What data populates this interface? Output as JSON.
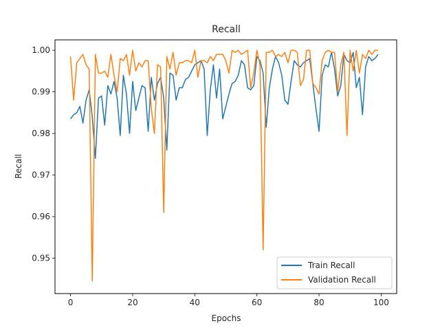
{
  "chart_data": {
    "type": "line",
    "title": "Recall",
    "xlabel": "Epochs",
    "ylabel": "Recall",
    "xlim": [
      -5,
      105
    ],
    "ylim": [
      0.9415,
      1.0025
    ],
    "xticks": [
      0,
      20,
      40,
      60,
      80,
      100
    ],
    "yticks": [
      0.95,
      0.96,
      0.97,
      0.98,
      0.99,
      1.0
    ],
    "ytick_labels": [
      "0.95",
      "0.96",
      "0.97",
      "0.98",
      "0.99",
      "1.00"
    ],
    "grid": false,
    "legend_position": "lower-right",
    "x": [
      0,
      1,
      2,
      3,
      4,
      5,
      6,
      7,
      8,
      9,
      10,
      11,
      12,
      13,
      14,
      15,
      16,
      17,
      18,
      19,
      20,
      21,
      22,
      23,
      24,
      25,
      26,
      27,
      28,
      29,
      30,
      31,
      32,
      33,
      34,
      35,
      36,
      37,
      38,
      39,
      40,
      41,
      42,
      43,
      44,
      45,
      46,
      47,
      48,
      49,
      50,
      51,
      52,
      53,
      54,
      55,
      56,
      57,
      58,
      59,
      60,
      61,
      62,
      63,
      64,
      65,
      66,
      67,
      68,
      69,
      70,
      71,
      72,
      73,
      74,
      75,
      76,
      77,
      78,
      79,
      80,
      81,
      82,
      83,
      84,
      85,
      86,
      87,
      88,
      89,
      90,
      91,
      92,
      93,
      94,
      95,
      96,
      97,
      98,
      99
    ],
    "series": [
      {
        "name": "Train Recall",
        "color": "#1f77b4",
        "values": [
          0.9835,
          0.9845,
          0.985,
          0.9865,
          0.9825,
          0.988,
          0.9905,
          0.984,
          0.974,
          0.9885,
          0.989,
          0.982,
          0.9915,
          0.9895,
          0.9925,
          0.9885,
          0.9795,
          0.994,
          0.9895,
          0.98,
          0.9925,
          0.9855,
          0.9885,
          0.9915,
          0.991,
          0.9805,
          0.9935,
          0.988,
          0.992,
          0.9935,
          0.9885,
          0.976,
          0.9945,
          0.994,
          0.988,
          0.991,
          0.991,
          0.993,
          0.9935,
          0.995,
          0.9965,
          0.997,
          0.9975,
          0.9955,
          0.9795,
          0.9905,
          0.9965,
          0.9885,
          0.9955,
          0.9835,
          0.9865,
          0.9895,
          0.992,
          0.9925,
          0.994,
          0.9975,
          0.9965,
          0.991,
          0.9905,
          0.9915,
          0.9985,
          0.9975,
          0.9945,
          0.9815,
          0.991,
          0.9955,
          0.9985,
          0.997,
          0.994,
          0.988,
          0.987,
          0.9925,
          0.9975,
          0.9965,
          0.996,
          0.997,
          0.9975,
          0.998,
          0.992,
          0.986,
          0.9805,
          0.994,
          0.9965,
          0.996,
          0.9995,
          0.9955,
          0.989,
          0.9915,
          0.999,
          0.9975,
          0.997,
          0.9995,
          0.991,
          0.9935,
          0.9845,
          0.996,
          0.9985,
          0.9975,
          0.998,
          0.999
        ]
      },
      {
        "name": "Validation Recall",
        "color": "#ff7f0e",
        "values": [
          0.9985,
          0.988,
          0.997,
          0.998,
          0.999,
          0.9965,
          0.9955,
          0.9445,
          0.999,
          0.9945,
          0.9945,
          0.995,
          0.9935,
          0.999,
          0.994,
          0.99,
          0.998,
          0.9975,
          0.999,
          0.994,
          1.0,
          0.995,
          0.997,
          0.996,
          0.9975,
          0.9975,
          0.986,
          0.98,
          0.9965,
          0.996,
          0.961,
          0.9985,
          0.9955,
          0.9995,
          0.994,
          0.997,
          0.997,
          0.9975,
          0.9975,
          0.997,
          1.0,
          0.9935,
          0.9975,
          0.9975,
          0.997,
          0.9985,
          0.9975,
          0.999,
          0.999,
          0.999,
          0.9975,
          0.9945,
          1.0,
          0.9995,
          1.0,
          0.999,
          0.9995,
          1.0,
          0.991,
          0.9945,
          1.0,
          0.9965,
          0.952,
          0.9995,
          0.9995,
          1.0,
          0.9985,
          0.999,
          0.9985,
          0.9995,
          0.997,
          1.0,
          1.0,
          0.9995,
          0.9915,
          0.993,
          1.0,
          1.0,
          0.992,
          0.991,
          0.9895,
          0.9975,
          0.9995,
          1.0,
          0.9995,
          0.9995,
          0.99,
          0.9965,
          0.9995,
          0.9795,
          1.0,
          0.995,
          1.0,
          0.9945,
          0.999,
          0.998,
          1.0,
          0.999,
          1.0,
          1.0
        ]
      }
    ]
  }
}
